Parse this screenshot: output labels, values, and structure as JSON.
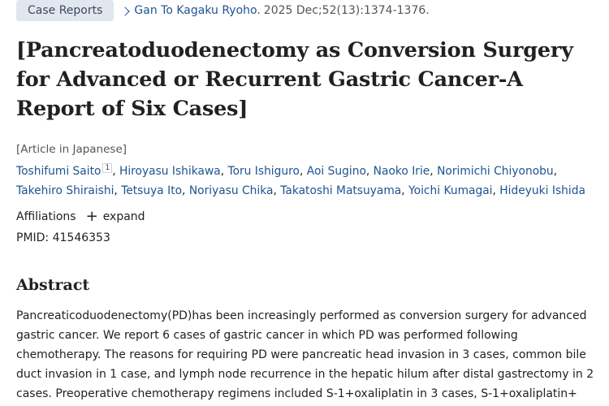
{
  "header": {
    "type_badge": "Case Reports",
    "journal": "Gan To Kagaku Ryoho.",
    "citation": "2025 Dec;52(13):1374-1376."
  },
  "article": {
    "title": "[Pancreatoduodenectomy as Conversion Surgery for Advanced or Recurrent Gastric Cancer-A Report of Six Cases]",
    "language_note": "[Article in Japanese]",
    "authors": [
      {
        "name": "Toshifumi Saito",
        "affiliation_ref": "1"
      },
      {
        "name": "Hiroyasu Ishikawa"
      },
      {
        "name": "Toru Ishiguro"
      },
      {
        "name": "Aoi Sugino"
      },
      {
        "name": "Naoko Irie"
      },
      {
        "name": "Norimichi Chiyonobu"
      },
      {
        "name": "Takehiro Shiraishi"
      },
      {
        "name": "Tetsuya Ito"
      },
      {
        "name": "Noriyasu Chika"
      },
      {
        "name": "Takatoshi Matsuyama"
      },
      {
        "name": "Yoichi Kumagai"
      },
      {
        "name": "Hideyuki Ishida"
      }
    ],
    "affiliations_label": "Affiliations",
    "expand_label": "expand",
    "pmid_label": "PMID:",
    "pmid": "41546353"
  },
  "abstract": {
    "heading": "Abstract",
    "lines": [
      "Pancreaticoduodenectomy(PD)has been increasingly performed as conversion surgery for advanced",
      "gastric cancer. We report 6 cases of gastric cancer in which PD was performed following",
      "chemotherapy. The reasons for requiring PD were pancreatic head invasion in 3 cases, common bile",
      "duct invasion in 1 case, and lymph node recurrence in the hepatic hilum after distal gastrectomy in 2",
      "cases. Preoperative chemotherapy regimens included S-1+oxaliplatin in 3 cases, S-1+oxaliplatin+"
    ]
  },
  "colors": {
    "link": "#205493",
    "badge_bg": "#e1e6ef",
    "text": "#212121"
  },
  "icons": {
    "journal_chevron": "chevron-right-icon",
    "expand": "plus-icon"
  }
}
